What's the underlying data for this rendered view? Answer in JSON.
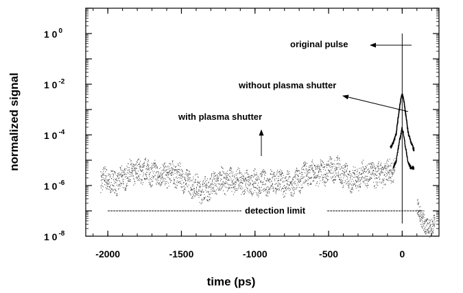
{
  "chart_data": {
    "type": "scatter",
    "xlabel": "time (ps)",
    "ylabel": "normalized signal",
    "xlim": [
      -2150,
      250
    ],
    "ylim_log10": [
      -8,
      1
    ],
    "y_scale": "log",
    "grid": false,
    "x_ticks": [
      {
        "value": -2000,
        "label": "-2000"
      },
      {
        "value": -1500,
        "label": "-1500"
      },
      {
        "value": -1000,
        "label": "-1000"
      },
      {
        "value": -500,
        "label": "-500"
      },
      {
        "value": 0,
        "label": "0"
      }
    ],
    "y_ticks": [
      {
        "exp": 0,
        "label": "1 0",
        "sup": "0"
      },
      {
        "exp": -2,
        "label": "1 0",
        "sup": "-2"
      },
      {
        "exp": -4,
        "label": "1 0",
        "sup": "-4"
      },
      {
        "exp": -6,
        "label": "1 0",
        "sup": "-6"
      },
      {
        "exp": -8,
        "label": "1 0",
        "sup": "-8"
      }
    ],
    "annotations": {
      "original_pulse": "original pulse",
      "without_plasma_shutter": "without plasma shutter",
      "with_plasma_shutter": "with plasma shutter",
      "detection_limit": "detection limit"
    },
    "series": [
      {
        "key": "with_shutter",
        "x": [
          -2050,
          -1950,
          -1850,
          -1750,
          -1650,
          -1550,
          -1450,
          -1350,
          -1250,
          -1150,
          -1050,
          -950,
          -850,
          -750,
          -650,
          -550,
          -450,
          -350,
          -250,
          -150,
          -50
        ],
        "y_log10": [
          -5.7,
          -5.9,
          -5.5,
          -5.4,
          -5.6,
          -5.5,
          -5.9,
          -6.2,
          -5.8,
          -5.8,
          -5.9,
          -5.9,
          -5.8,
          -6.0,
          -5.5,
          -5.5,
          -5.3,
          -5.8,
          -5.5,
          -5.6,
          -5.3
        ]
      },
      {
        "key": "original_pulse",
        "x": [
          0,
          0
        ],
        "y_log10": [
          -7.5,
          0.0
        ]
      },
      {
        "key": "without_shutter",
        "x": [
          -80,
          -60,
          -40,
          -20,
          -10,
          0,
          10,
          20,
          40,
          60,
          80
        ],
        "y_log10": [
          -4.5,
          -4.3,
          -3.9,
          -3.0,
          -2.6,
          -2.4,
          -2.6,
          -3.0,
          -3.9,
          -4.3,
          -4.6
        ]
      },
      {
        "key": "with_shutter_peak",
        "x": [
          -60,
          -40,
          -20,
          -10,
          0,
          10,
          20,
          40,
          60,
          80
        ],
        "y_log10": [
          -5.3,
          -5.0,
          -4.3,
          -4.0,
          -3.7,
          -4.0,
          -4.4,
          -5.1,
          -5.3,
          -5.3
        ]
      },
      {
        "key": "after_pulse",
        "x": [
          100,
          130,
          160,
          190,
          220
        ],
        "y_log10": [
          -6.8,
          -7.3,
          -7.6,
          -7.7,
          -7.4
        ]
      },
      {
        "key": "detection_limit",
        "x": [
          -2000,
          150
        ],
        "y_log10": [
          -7.0,
          -7.0
        ]
      }
    ]
  }
}
